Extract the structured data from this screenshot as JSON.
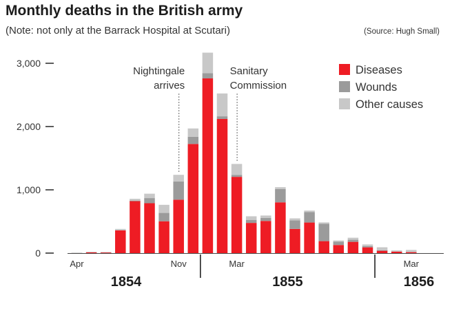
{
  "header": {
    "title": "Monthly deaths in the British army",
    "subtitle": "(Note: not only at the Barrack Hospital at Scutari)",
    "source": "(Source: Hugh Small)"
  },
  "chart_data": {
    "type": "bar",
    "stacked": true,
    "title": "Monthly deaths in the British army",
    "ylim": [
      0,
      3200
    ],
    "yticks": [
      0,
      1000,
      2000,
      3000
    ],
    "ytick_labels": [
      "0",
      "1,000",
      "2,000",
      "3,000"
    ],
    "categories": [
      "Apr 1854",
      "May 1854",
      "Jun 1854",
      "Jul 1854",
      "Aug 1854",
      "Sep 1854",
      "Oct 1854",
      "Nov 1854",
      "Dec 1854",
      "Jan 1855",
      "Feb 1855",
      "Mar 1855",
      "Apr 1855",
      "May 1855",
      "Jun 1855",
      "Jul 1855",
      "Aug 1855",
      "Sep 1855",
      "Oct 1855",
      "Nov 1855",
      "Dec 1855",
      "Jan 1856",
      "Feb 1856",
      "Mar 1856"
    ],
    "xtick_labels": [
      {
        "index": 0,
        "label": "Apr"
      },
      {
        "index": 7,
        "label": "Nov"
      },
      {
        "index": 11,
        "label": "Mar"
      },
      {
        "index": 23,
        "label": "Mar"
      }
    ],
    "year_labels": [
      {
        "label": "1854",
        "from": 0,
        "to": 8
      },
      {
        "label": "1855",
        "from": 9,
        "to": 20
      },
      {
        "label": "1856",
        "from": 21,
        "to": 23
      }
    ],
    "series": [
      {
        "name": "Diseases",
        "color": "#ee1c24",
        "values": [
          2,
          12,
          11,
          359,
          828,
          788,
          503,
          844,
          1725,
          2761,
          2120,
          1205,
          477,
          508,
          802,
          382,
          483,
          189,
          128,
          178,
          91,
          42,
          24,
          15
        ]
      },
      {
        "name": "Wounds",
        "color": "#9b9b9b",
        "values": [
          0,
          0,
          0,
          0,
          1,
          81,
          132,
          287,
          114,
          83,
          42,
          32,
          48,
          49,
          209,
          134,
          164,
          276,
          53,
          33,
          18,
          2,
          0,
          0
        ]
      },
      {
        "name": "Other causes",
        "color": "#c8c8c8",
        "values": [
          5,
          9,
          6,
          23,
          30,
          70,
          128,
          106,
          131,
          324,
          361,
          172,
          57,
          37,
          31,
          33,
          25,
          20,
          18,
          32,
          28,
          48,
          19,
          35
        ]
      }
    ],
    "annotations": [
      {
        "lines": [
          "Nightingale",
          "arrives"
        ],
        "index": 7
      },
      {
        "lines": [
          "Sanitary",
          "Commission"
        ],
        "index": 11
      }
    ]
  }
}
